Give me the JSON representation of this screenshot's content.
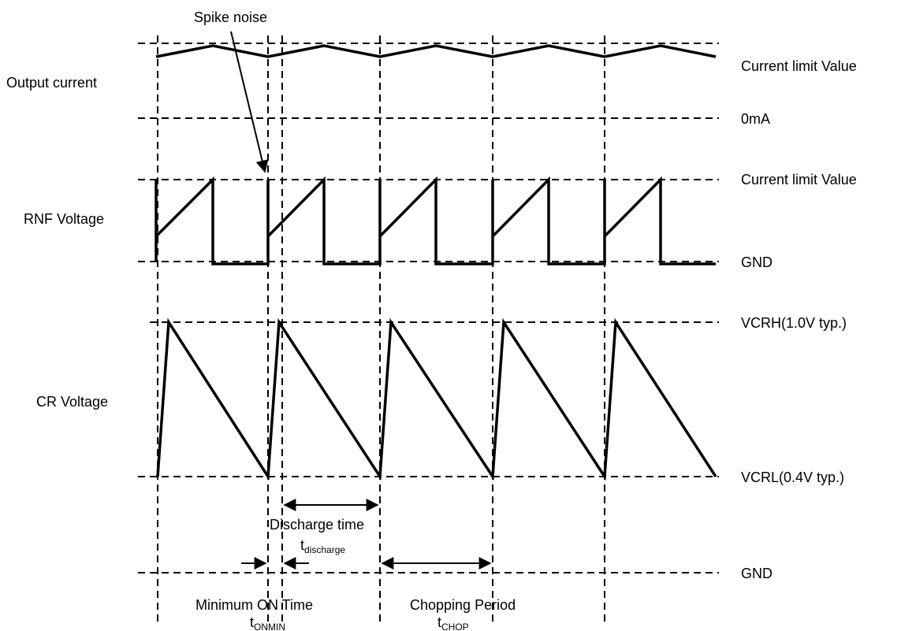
{
  "annotation": {
    "spike_noise": "Spike noise"
  },
  "signals": {
    "output_current": "Output  current",
    "rnf_voltage": "RNF Voltage",
    "cr_voltage": "CR Voltage"
  },
  "levels": {
    "current_limit_1": "Current limit Value",
    "zero_ma": "0mA",
    "current_limit_2": "Current limit Value",
    "gnd_rnf": "GND",
    "vcrh": "VCRH(1.0V typ.)",
    "vcrl": "VCRL(0.4V typ.)",
    "gnd_bottom": "GND"
  },
  "timings": {
    "discharge": {
      "label": "Discharge time",
      "symbol": "t",
      "subscript": "discharge"
    },
    "min_on": {
      "label": "Minimum ON Time",
      "symbol": "t",
      "subscript": "ONMIN"
    },
    "chop": {
      "label": "Chopping Period",
      "symbol": "t",
      "subscript": "CHOP"
    }
  }
}
